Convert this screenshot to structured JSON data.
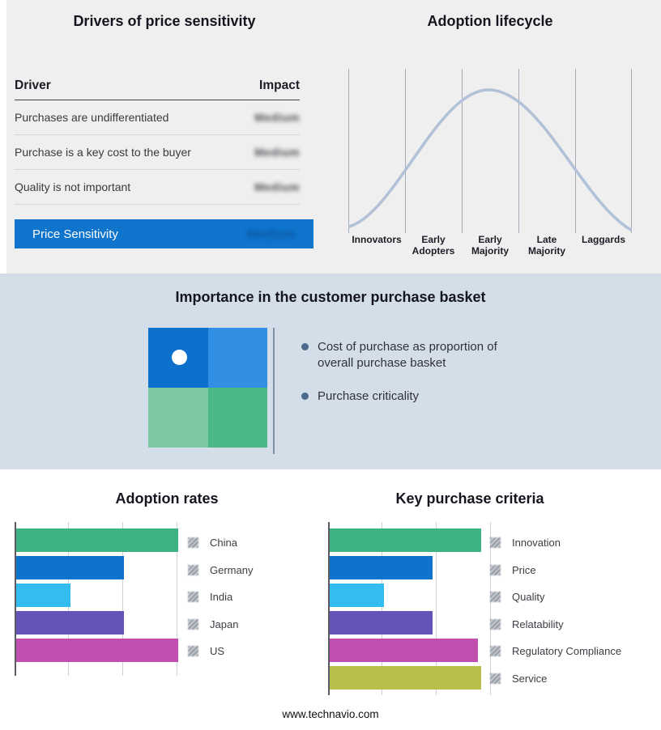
{
  "page": {
    "footer_link": "www.technavio.com",
    "accent_color": "#0e74cc"
  },
  "drivers_panel": {
    "title": "Drivers of price sensitivity",
    "columns": {
      "driver": "Driver",
      "impact": "Impact"
    },
    "rows": [
      {
        "driver": "Purchases are undifferentiated",
        "impact": "Medium"
      },
      {
        "driver": "Purchase is a key cost to the buyer",
        "impact": "Medium"
      },
      {
        "driver": "Quality is not important",
        "impact": "Medium"
      }
    ],
    "summary": {
      "label": "Price Sensitivity",
      "impact": "Medium"
    }
  },
  "basket_panel": {
    "title": "Importance in the customer purchase basket",
    "bullets": [
      "Cost of purchase as proportion of overall purchase basket",
      "Purchase criticality"
    ],
    "quadrant_colors": [
      "#0d70cc",
      "#3190e4",
      "#7cc8a2",
      "#4bb886"
    ]
  },
  "chart_data": [
    {
      "id": "adoption_lifecycle",
      "type": "line",
      "title": "Adoption lifecycle",
      "x": [
        "Innovators",
        "Early Adopters",
        "Early Majority",
        "Late Majority",
        "Laggards"
      ],
      "curve": "bell-shaped adoption curve peaking at Early Majority",
      "curve_color": "#b0c1d8",
      "grid": true,
      "legend_position": "none"
    },
    {
      "id": "adoption_rates",
      "type": "bar",
      "title": "Adoption rates",
      "orientation": "horizontal",
      "categories": [
        "China",
        "Germany",
        "India",
        "Japan",
        "US"
      ],
      "values": [
        3,
        2,
        1,
        2,
        3
      ],
      "xlim": [
        0,
        3
      ],
      "colors": [
        "#3db384",
        "#0d73cd",
        "#32bcf0",
        "#6355b7",
        "#c04fb0"
      ],
      "grid": true,
      "legend_position": "right"
    },
    {
      "id": "key_purchase_criteria",
      "type": "bar",
      "title": "Key purchase criteria",
      "orientation": "horizontal",
      "categories": [
        "Innovation",
        "Price",
        "Quality",
        "Relatability",
        "Regulatory Compliance",
        "Service"
      ],
      "values": [
        2.8,
        1.9,
        1,
        1.9,
        2.75,
        2.8
      ],
      "xlim": [
        0,
        3
      ],
      "colors": [
        "#3db384",
        "#0d73cd",
        "#32bcf0",
        "#6355b7",
        "#c04fb0",
        "#b9bd4a"
      ],
      "grid": true,
      "legend_position": "right"
    }
  ]
}
